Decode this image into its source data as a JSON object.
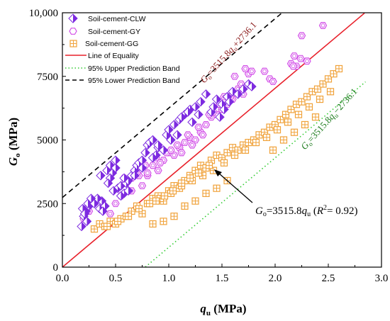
{
  "chart_data": {
    "type": "scatter",
    "xlim": [
      0,
      3.0
    ],
    "ylim": [
      0,
      10000
    ],
    "xticks": [
      "0.0",
      "0.5",
      "1.0",
      "1.5",
      "2.0",
      "2.5",
      "3.0"
    ],
    "yticks": [
      "0",
      "2500",
      "5000",
      "7500",
      "10,000"
    ],
    "xlabel": {
      "main": "q",
      "sub": "u",
      "unit": " (MPa)"
    },
    "ylabel": {
      "main": "G",
      "sub": "o",
      "unit": " (MPa)"
    },
    "grid": false,
    "legend_position": "top-left",
    "legend": [
      {
        "name": "Soil-cement-CLW",
        "marker": "half-diamond",
        "color": "#7d2be0"
      },
      {
        "name": "Soil-cement-GY",
        "marker": "hexagon",
        "color": "#d24ee8"
      },
      {
        "name": "Soil-cement-GG",
        "marker": "crossed-square",
        "color": "#f0a23a"
      },
      {
        "name": "Line of Equality",
        "style": "solid",
        "color": "#e8202a"
      },
      {
        "name": "95% Upper Prediction Band",
        "style": "dotted",
        "color": "#33cc33"
      },
      {
        "name": "95% Lower Prediction Band",
        "style": "dashed",
        "color": "#000000"
      }
    ],
    "lines": [
      {
        "name": "Line of Equality",
        "slope": 3515.8,
        "intercept": 0,
        "x": [
          0,
          2.84
        ],
        "color": "#e8202a",
        "style": "solid"
      },
      {
        "name": "95% Upper Prediction Band",
        "slope": 3515.8,
        "intercept": -2736.1,
        "x": [
          0.78,
          2.85
        ],
        "color": "#33cc33",
        "style": "dotted"
      },
      {
        "name": "95% Lower Prediction Band",
        "slope": 3515.8,
        "intercept": 2736.1,
        "x": [
          0,
          2.07
        ],
        "color": "#000000",
        "style": "dashed"
      }
    ],
    "annotations": {
      "lower_band": {
        "parts": [
          "G",
          "o",
          "=3515.8",
          "q",
          "u",
          "+2736.1"
        ],
        "color": "#8b1a1a"
      },
      "upper_band": {
        "parts": [
          "G",
          "o",
          "=3515.8",
          "q",
          "u",
          "−2736.1"
        ],
        "color": "#1a7a1a"
      },
      "fit": {
        "parts": [
          "G",
          "o",
          "=3515.8",
          "q",
          "u",
          " (",
          "R",
          "2",
          "= 0.92)"
        ]
      }
    },
    "series": [
      {
        "name": "Soil-cement-CLW",
        "x": [
          0.18,
          0.2,
          0.22,
          0.25,
          0.19,
          0.23,
          0.21,
          0.24,
          0.35,
          0.37,
          0.4,
          0.33,
          0.38,
          0.42,
          0.36,
          0.45,
          0.47,
          0.5,
          0.52,
          0.48,
          0.55,
          0.58,
          0.6,
          0.62,
          0.65,
          0.68,
          0.7,
          0.72,
          0.75,
          0.78,
          0.8,
          0.82,
          0.85,
          0.88,
          0.9,
          0.95,
          0.98,
          1.0,
          1.02,
          1.05,
          1.08,
          1.1,
          1.15,
          1.2,
          1.25,
          1.3,
          1.35,
          1.4,
          1.45,
          1.5,
          1.55,
          1.6,
          1.65,
          1.7,
          1.75,
          1.78,
          0.5,
          0.45,
          0.55,
          0.62,
          0.68,
          0.75,
          0.85,
          0.9,
          1.12,
          1.18,
          1.22,
          1.28,
          1.42,
          1.48,
          1.52,
          1.57,
          0.3,
          0.27,
          0.43,
          0.58
        ],
        "y": [
          1600,
          2000,
          2200,
          2400,
          2300,
          1800,
          2100,
          2500,
          2300,
          2600,
          2400,
          2700,
          2200,
          3800,
          3600,
          4000,
          3700,
          3900,
          3100,
          3000,
          3200,
          2900,
          3300,
          3400,
          3600,
          3800,
          4000,
          4100,
          4200,
          4500,
          4800,
          4900,
          5000,
          4400,
          4700,
          4600,
          5200,
          5400,
          5000,
          5600,
          5200,
          5800,
          6000,
          6200,
          6300,
          6500,
          6800,
          6100,
          6600,
          6400,
          6700,
          6900,
          6800,
          7000,
          7200,
          7100,
          4200,
          3500,
          2800,
          3000,
          3600,
          3900,
          4300,
          4800,
          5900,
          6100,
          5700,
          6000,
          6300,
          5900,
          6200,
          6500,
          2500,
          2700,
          3300,
          3500
        ]
      },
      {
        "name": "Soil-cement-GY",
        "x": [
          0.2,
          0.25,
          0.45,
          0.55,
          0.6,
          0.65,
          0.7,
          0.75,
          0.8,
          0.85,
          0.9,
          0.95,
          1.0,
          1.05,
          1.1,
          1.15,
          1.2,
          1.25,
          1.3,
          1.35,
          1.4,
          1.45,
          1.5,
          1.55,
          1.6,
          1.65,
          1.7,
          1.75,
          1.9,
          1.95,
          1.98,
          2.15,
          2.18,
          2.2,
          2.25,
          2.3,
          2.45,
          0.65,
          0.72,
          0.78,
          0.88,
          0.98,
          1.08,
          1.18,
          1.28,
          1.38,
          1.48,
          1.58,
          1.68,
          1.78,
          0.5,
          0.62,
          0.8,
          0.92,
          1.02,
          1.12,
          1.22,
          1.32,
          1.42,
          1.52,
          1.62,
          1.72,
          2.17,
          2.24,
          0.58,
          0.7
        ],
        "y": [
          1900,
          2200,
          2100,
          2800,
          3300,
          3500,
          3900,
          3200,
          3600,
          4000,
          3800,
          4200,
          4500,
          4400,
          4700,
          4900,
          5100,
          5000,
          5300,
          5600,
          5900,
          6000,
          6200,
          6400,
          6600,
          7000,
          6800,
          7600,
          7700,
          7400,
          7300,
          8000,
          8300,
          7900,
          9100,
          8100,
          9500,
          3000,
          3600,
          4000,
          4300,
          4500,
          4800,
          5200,
          5500,
          6000,
          6400,
          6700,
          7200,
          7700,
          2500,
          3400,
          3700,
          4100,
          4600,
          4500,
          4800,
          5200,
          6100,
          6700,
          7500,
          7800,
          7900,
          8200,
          3500,
          3700
        ]
      },
      {
        "name": "Soil-cement-GG",
        "x": [
          0.3,
          0.35,
          0.4,
          0.45,
          0.5,
          0.55,
          0.6,
          0.65,
          0.7,
          0.75,
          0.8,
          0.85,
          0.9,
          0.95,
          1.0,
          1.05,
          1.1,
          1.15,
          1.2,
          1.25,
          1.3,
          1.35,
          1.4,
          1.45,
          1.5,
          1.55,
          1.6,
          1.65,
          1.7,
          1.75,
          1.8,
          1.85,
          1.9,
          1.95,
          2.0,
          2.05,
          2.1,
          2.15,
          2.2,
          2.25,
          2.3,
          2.35,
          2.4,
          2.45,
          2.5,
          2.55,
          2.6,
          0.42,
          0.52,
          0.62,
          0.72,
          0.82,
          0.92,
          1.02,
          1.12,
          1.22,
          1.32,
          1.42,
          1.52,
          1.62,
          1.72,
          1.82,
          1.92,
          2.02,
          2.12,
          2.22,
          2.32,
          2.42,
          2.52,
          0.85,
          0.95,
          1.05,
          1.15,
          1.25,
          1.35,
          1.45,
          1.55,
          1.98,
          2.08,
          2.18,
          2.28,
          2.38,
          0.88,
          0.96,
          1.04,
          1.12,
          1.2,
          1.28,
          1.38
        ],
        "y": [
          1500,
          1700,
          1600,
          1800,
          1700,
          1900,
          2000,
          2200,
          2400,
          2100,
          2500,
          2700,
          2800,
          2600,
          3000,
          3200,
          3100,
          3400,
          3600,
          3800,
          4000,
          3900,
          4200,
          4400,
          4300,
          4500,
          4700,
          4600,
          4800,
          4900,
          5000,
          5200,
          5300,
          5500,
          5600,
          5800,
          6000,
          6200,
          6400,
          6500,
          6700,
          6900,
          7000,
          7200,
          7400,
          7600,
          7800,
          1600,
          1800,
          2000,
          2300,
          2500,
          2700,
          2900,
          3200,
          3400,
          3600,
          3800,
          4100,
          4400,
          4600,
          4900,
          5100,
          5400,
          5700,
          6000,
          6300,
          6600,
          6900,
          1700,
          1800,
          2000,
          2400,
          2600,
          2900,
          3100,
          3400,
          4600,
          5000,
          5300,
          5600,
          5900,
          2600,
          2800,
          3000,
          3300,
          3500,
          3700,
          4000
        ]
      }
    ]
  }
}
